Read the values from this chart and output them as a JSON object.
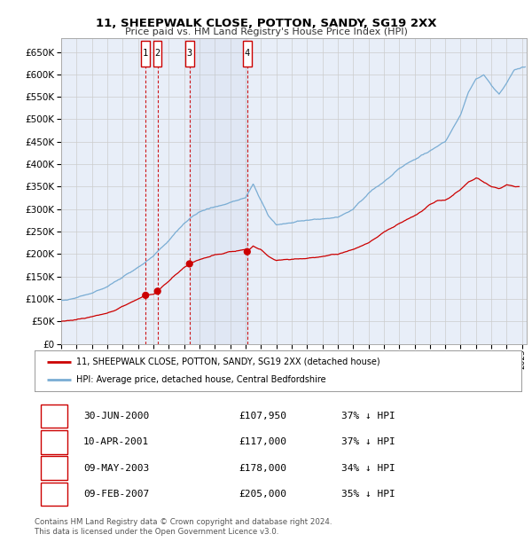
{
  "title1": "11, SHEEPWALK CLOSE, POTTON, SANDY, SG19 2XX",
  "title2": "Price paid vs. HM Land Registry's House Price Index (HPI)",
  "xlim_start": 1995.0,
  "xlim_end": 2025.3,
  "ylim_min": 0,
  "ylim_max": 680000,
  "yticks": [
    0,
    50000,
    100000,
    150000,
    200000,
    250000,
    300000,
    350000,
    400000,
    450000,
    500000,
    550000,
    600000,
    650000
  ],
  "sale_dates_num": [
    2000.496,
    2001.274,
    2003.354,
    2007.108
  ],
  "sale_prices": [
    107950,
    117000,
    178000,
    205000
  ],
  "sale_labels": [
    "1",
    "2",
    "3",
    "4"
  ],
  "sale_dates_str": [
    "30-JUN-2000",
    "10-APR-2001",
    "09-MAY-2003",
    "09-FEB-2007"
  ],
  "sale_prices_str": [
    "£107,950",
    "£117,000",
    "£178,000",
    "£205,000"
  ],
  "sale_hpi_pct": [
    "37% ↓ HPI",
    "37% ↓ HPI",
    "34% ↓ HPI",
    "35% ↓ HPI"
  ],
  "red_line_color": "#cc0000",
  "blue_line_color": "#7aadd4",
  "bg_color": "#ffffff",
  "plot_bg_color": "#e8eef8",
  "grid_color": "#cccccc",
  "legend_label_red": "11, SHEEPWALK CLOSE, POTTON, SANDY, SG19 2XX (detached house)",
  "legend_label_blue": "HPI: Average price, detached house, Central Bedfordshire",
  "footer1": "Contains HM Land Registry data © Crown copyright and database right 2024.",
  "footer2": "This data is licensed under the Open Government Licence v3.0.",
  "vline_color": "#cc0000",
  "label_box_color": "#cc0000"
}
